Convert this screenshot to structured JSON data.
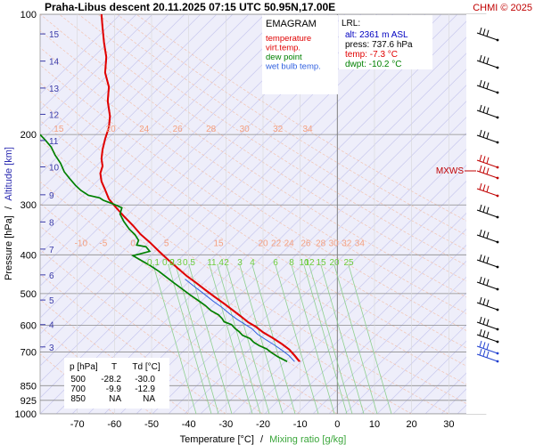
{
  "header": {
    "title": "Praha-Libus   descent   20.11.2025 07:15 UTC  50.95N,17.00E",
    "credit": "CHMI © 2025"
  },
  "legend": {
    "title": "EMAGRAM",
    "items": [
      {
        "label": "temperature",
        "color": "#e00000"
      },
      {
        "label": "virt.temp.",
        "color": "#e00000"
      },
      {
        "label": "dew point",
        "color": "#008000"
      },
      {
        "label": "wet bulb temp.",
        "color": "#3060e0"
      }
    ]
  },
  "lrl": {
    "title": "LRL:",
    "alt": "alt: 2361 m ASL",
    "press": "press: 737.6 hPa",
    "temp": "temp: -7.3 °C",
    "dwpt": "dwpt: -10.2 °C",
    "colors": {
      "alt": "#0000c0",
      "press": "#000000",
      "temp": "#e00000",
      "dwpt": "#008000"
    }
  },
  "mxws_label": "MXWS",
  "table": {
    "headers": [
      "p [hPa]",
      "T",
      "Td [°C]"
    ],
    "rows": [
      [
        "500",
        "-28.2",
        "-30.0"
      ],
      [
        "700",
        "-9.9",
        "-12.9"
      ],
      [
        "850",
        "NA",
        "NA"
      ]
    ]
  },
  "chart_data": {
    "type": "line",
    "xlabel": "Temperature [°C]",
    "xlabel_sep": "/",
    "xlabel2": "Mixing ratio [g/kg]",
    "ylabel": "Pressure [hPa]",
    "ylabel_sep": "/",
    "ylabel2": "Altitude [km]",
    "xlim": [
      -80,
      40
    ],
    "ylim": [
      1000,
      100
    ],
    "y_scale": "log",
    "x_ticks": [
      -70,
      -60,
      -50,
      -40,
      -30,
      -20,
      -10,
      0,
      10,
      20,
      30
    ],
    "pressure_ticks": [
      100,
      200,
      300,
      400,
      500,
      600,
      700,
      850,
      925,
      1000
    ],
    "altitude_ticks": [
      {
        "km": "15",
        "p": 112
      },
      {
        "km": "14",
        "p": 131
      },
      {
        "km": "13",
        "p": 153
      },
      {
        "km": "12",
        "p": 178
      },
      {
        "km": "11",
        "p": 207
      },
      {
        "km": "10",
        "p": 241
      },
      {
        "km": "9",
        "p": 283
      },
      {
        "km": "8",
        "p": 331
      },
      {
        "km": "7",
        "p": 387
      },
      {
        "km": "6",
        "p": 449
      },
      {
        "km": "5",
        "p": 519
      },
      {
        "km": "4",
        "p": 598
      },
      {
        "km": "3",
        "p": 680
      }
    ],
    "grid_annotations": [
      {
        "text": "15",
        "p": 200,
        "t": -75
      },
      {
        "text": "20",
        "p": 200,
        "t": -61
      },
      {
        "text": "24",
        "p": 200,
        "t": -52
      },
      {
        "text": "26",
        "p": 200,
        "t": -43
      },
      {
        "text": "28",
        "p": 200,
        "t": -34
      },
      {
        "text": "30",
        "p": 200,
        "t": -25
      },
      {
        "text": "32",
        "p": 200,
        "t": -16
      },
      {
        "text": "34",
        "p": 200,
        "t": -8
      },
      {
        "text": "-10",
        "p": 386,
        "t": -69
      },
      {
        "text": "-5",
        "p": 386,
        "t": -63
      },
      {
        "text": "0",
        "p": 386,
        "t": -55
      },
      {
        "text": "5",
        "p": 386,
        "t": -46
      },
      {
        "text": "15",
        "p": 386,
        "t": -32
      },
      {
        "text": "20",
        "p": 386,
        "t": -20
      },
      {
        "text": "22",
        "p": 386,
        "t": -16.5
      },
      {
        "text": "24",
        "p": 386,
        "t": -13
      },
      {
        "text": "26",
        "p": 386,
        "t": -8.5
      },
      {
        "text": "28",
        "p": 386,
        "t": -4.5
      },
      {
        "text": "30",
        "p": 386,
        "t": -1
      },
      {
        "text": "32",
        "p": 386,
        "t": 2.5
      },
      {
        "text": "34",
        "p": 386,
        "t": 6
      }
    ],
    "mixing_ratio_labels": [
      "0.1",
      "0.2",
      "0.3",
      "0.5",
      "1",
      "1.4",
      "2",
      "3",
      "4",
      "6",
      "8",
      "10",
      "12",
      "15",
      "20",
      "25"
    ],
    "series": [
      {
        "name": "temperature",
        "color": "#e00000",
        "points": [
          [
            -10.2,
            740
          ],
          [
            -11.5,
            715
          ],
          [
            -13,
            690
          ],
          [
            -15,
            668
          ],
          [
            -17.5,
            645
          ],
          [
            -20,
            625
          ],
          [
            -22,
            605
          ],
          [
            -24,
            590
          ],
          [
            -26,
            570
          ],
          [
            -28.2,
            550
          ],
          [
            -30.5,
            530
          ],
          [
            -33,
            510
          ],
          [
            -35.5,
            490
          ],
          [
            -38,
            470
          ],
          [
            -40.5,
            452
          ],
          [
            -43,
            432
          ],
          [
            -45.5,
            412
          ],
          [
            -48,
            392
          ],
          [
            -50.5,
            372
          ],
          [
            -53,
            355
          ],
          [
            -55,
            338
          ],
          [
            -57.5,
            320
          ],
          [
            -59.5,
            305
          ],
          [
            -61.5,
            290
          ],
          [
            -62.5,
            275
          ],
          [
            -63.5,
            262
          ],
          [
            -63.8,
            250
          ],
          [
            -63.2,
            240
          ],
          [
            -63.5,
            230
          ],
          [
            -63.2,
            218
          ],
          [
            -62.5,
            205
          ],
          [
            -61.5,
            192
          ],
          [
            -61.2,
            180
          ],
          [
            -61.8,
            165
          ],
          [
            -61.5,
            152
          ],
          [
            -62.5,
            140
          ],
          [
            -62.2,
            128
          ],
          [
            -62.8,
            118
          ],
          [
            -63.2,
            108
          ],
          [
            -63.5,
            100
          ]
        ]
      },
      {
        "name": "virt.temp.",
        "color": "#e00000",
        "points": [
          [
            -10,
            740
          ],
          [
            -11.3,
            715
          ],
          [
            -12.8,
            690
          ],
          [
            -14.8,
            668
          ],
          [
            -17.3,
            645
          ],
          [
            -19.8,
            625
          ],
          [
            -21.8,
            605
          ],
          [
            -23.8,
            590
          ],
          [
            -25.8,
            570
          ],
          [
            -28,
            550
          ],
          [
            -30.3,
            530
          ],
          [
            -32.8,
            510
          ],
          [
            -35.3,
            490
          ],
          [
            -37.9,
            470
          ],
          [
            -40.4,
            452
          ],
          [
            -42.9,
            432
          ],
          [
            -45.4,
            412
          ],
          [
            -47.9,
            392
          ],
          [
            -50.4,
            372
          ],
          [
            -52.9,
            355
          ],
          [
            -54.9,
            338
          ],
          [
            -57.4,
            320
          ],
          [
            -59.4,
            305
          ],
          [
            -61.4,
            290
          ],
          [
            -62.4,
            275
          ],
          [
            -63.4,
            262
          ],
          [
            -63.7,
            250
          ],
          [
            -63.1,
            240
          ],
          [
            -63.4,
            230
          ],
          [
            -63.1,
            218
          ],
          [
            -62.4,
            205
          ],
          [
            -61.4,
            192
          ],
          [
            -61.1,
            180
          ],
          [
            -61.7,
            165
          ],
          [
            -61.4,
            152
          ],
          [
            -62.4,
            140
          ],
          [
            -62.1,
            128
          ],
          [
            -62.7,
            118
          ],
          [
            -63.1,
            108
          ],
          [
            -63.4,
            100
          ]
        ]
      },
      {
        "name": "dew point",
        "color": "#008000",
        "points": [
          [
            -13.5,
            740
          ],
          [
            -16,
            720
          ],
          [
            -18,
            700
          ],
          [
            -19,
            688
          ],
          [
            -21,
            675
          ],
          [
            -22.5,
            662
          ],
          [
            -23.5,
            648
          ],
          [
            -25.5,
            636
          ],
          [
            -26.5,
            622
          ],
          [
            -27.5,
            612
          ],
          [
            -28.5,
            598
          ],
          [
            -30.5,
            588
          ],
          [
            -31,
            578
          ],
          [
            -32,
            565
          ],
          [
            -34,
            552
          ],
          [
            -35.5,
            536
          ],
          [
            -37.5,
            520
          ],
          [
            -39.5,
            505
          ],
          [
            -42,
            485
          ],
          [
            -44,
            470
          ],
          [
            -46,
            455
          ],
          [
            -48,
            440
          ],
          [
            -50.5,
            425
          ],
          [
            -53,
            412
          ],
          [
            -55,
            402
          ],
          [
            -50.5,
            392
          ],
          [
            -51.5,
            382
          ],
          [
            -54,
            378
          ],
          [
            -53.5,
            368
          ],
          [
            -54.5,
            356
          ],
          [
            -56,
            345
          ],
          [
            -57.5,
            330
          ],
          [
            -58.5,
            316
          ],
          [
            -58,
            305
          ],
          [
            -60.5,
            298
          ],
          [
            -63,
            292
          ],
          [
            -64,
            288
          ],
          [
            -67,
            284
          ],
          [
            -69,
            276
          ],
          [
            -70.5,
            268
          ],
          [
            -72,
            258
          ],
          [
            -73.5,
            248
          ],
          [
            -74.5,
            236
          ],
          [
            -76,
            225
          ],
          [
            -77,
            215
          ],
          [
            -78.5,
            207
          ],
          [
            -80,
            200
          ]
        ]
      },
      {
        "name": "wet bulb temp.",
        "color": "#3060e0",
        "points": [
          [
            -11.5,
            740
          ],
          [
            -13,
            715
          ],
          [
            -15,
            692
          ],
          [
            -17,
            672
          ],
          [
            -19.5,
            650
          ],
          [
            -21.5,
            632
          ],
          [
            -23,
            612
          ],
          [
            -25,
            596
          ],
          [
            -27,
            580
          ],
          [
            -29,
            562
          ],
          [
            -31,
            542
          ],
          [
            -33.5,
            522
          ],
          [
            -36,
            500
          ],
          [
            -38.5,
            480
          ],
          [
            -41,
            460
          ]
        ]
      }
    ]
  }
}
